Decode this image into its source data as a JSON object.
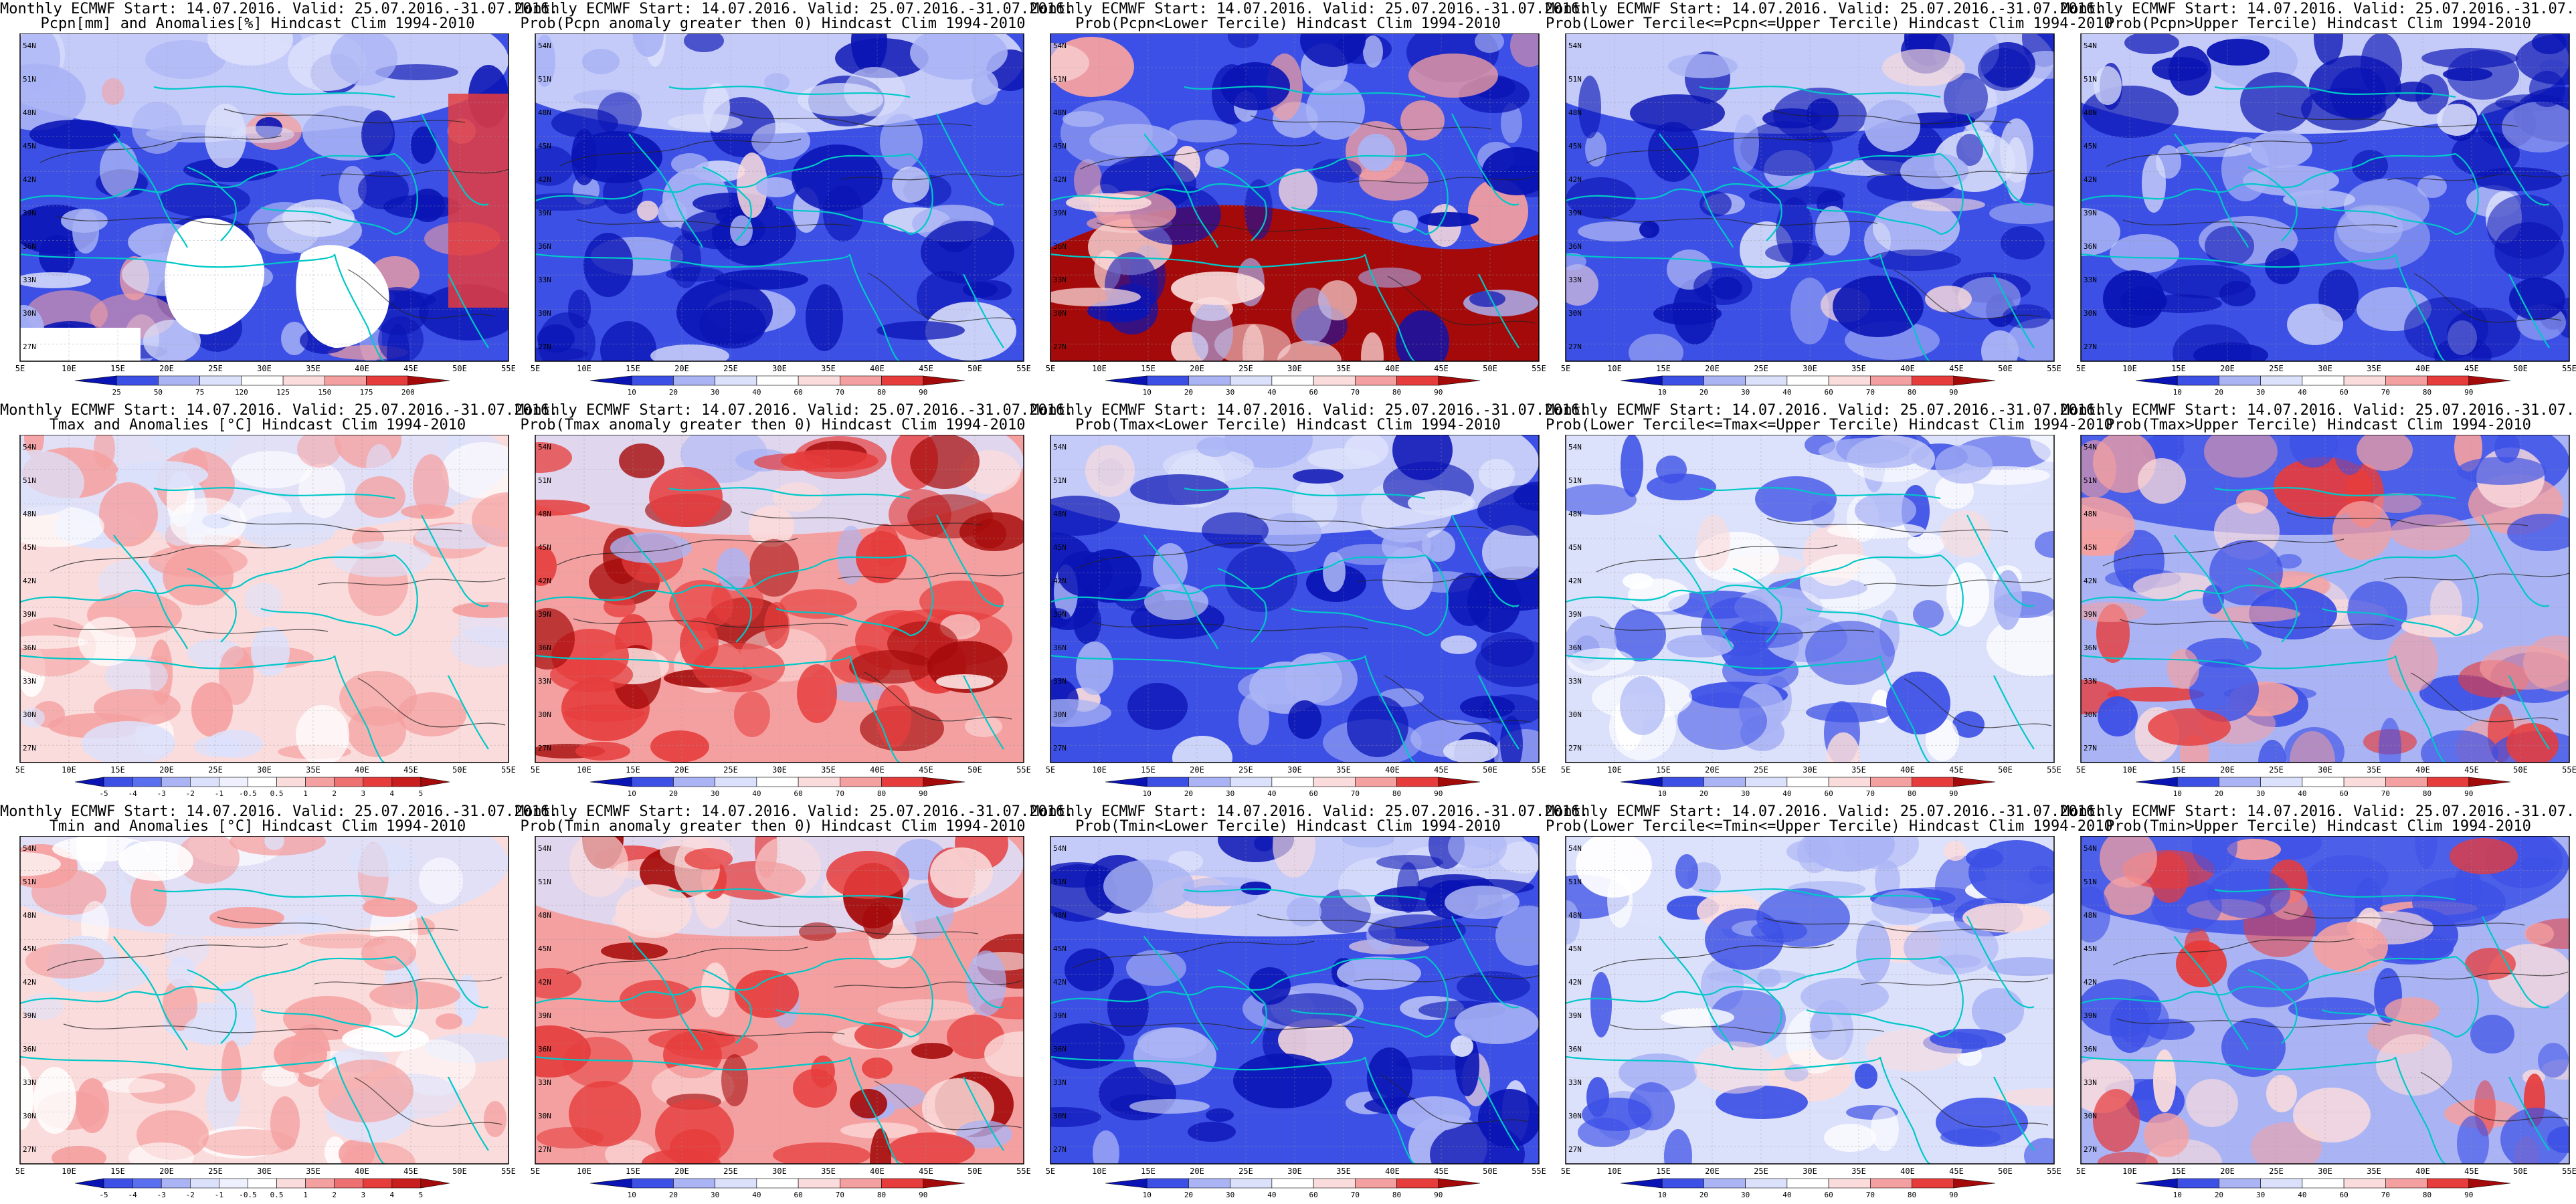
{
  "header_line": "Monthly ECMWF Start: 14.07.2016. Valid: 25.07.2016.-31.07.2016.",
  "colors": {
    "land": "#ffffff",
    "coast": "#00c8c8",
    "contour": "#222222",
    "deep_blue": "#0a14b4",
    "mid_blue": "#3c50e6",
    "light_blue": "#aab4f5",
    "pale_blue": "#dce1fb",
    "pale_red": "#fbdcdc",
    "light_red": "#f5a0a0",
    "mid_red": "#e63c3c",
    "deep_red": "#a50a0a"
  },
  "axis": {
    "lat_ticks": [
      "54N",
      "51N",
      "48N",
      "45N",
      "42N",
      "39N",
      "36N",
      "33N",
      "30N",
      "27N"
    ],
    "lon_ticks": [
      "5E",
      "10E",
      "15E",
      "20E",
      "25E",
      "30E",
      "35E",
      "40E",
      "45E",
      "50E",
      "55E"
    ]
  },
  "colorbars": {
    "precip": [
      "25",
      "50",
      "75",
      "120",
      "125",
      "150",
      "175",
      "200"
    ],
    "prob": [
      "10",
      "20",
      "30",
      "40",
      "60",
      "70",
      "80",
      "90"
    ],
    "temp": [
      "-5",
      "-4",
      "-3",
      "-2",
      "-1",
      "-0.5",
      "0.5",
      "1",
      "2",
      "3",
      "4",
      "5"
    ]
  },
  "panels": [
    {
      "id": "pcpn-anom",
      "row": 0,
      "col": 0,
      "subtitle": "Pcpn[mm] and Anomalies[%] Hindcast Clim 1994-2010",
      "scale": "precip",
      "theme": "precip"
    },
    {
      "id": "pcpn-prob-gt0",
      "row": 0,
      "col": 1,
      "subtitle": "Prob(Pcpn anomaly greater then 0) Hindcast Clim 1994-2010",
      "scale": "prob",
      "theme": "blue"
    },
    {
      "id": "pcpn-lower",
      "row": 0,
      "col": 2,
      "subtitle": "Prob(Pcpn<Lower Tercile) Hindcast Clim 1994-2010",
      "scale": "prob",
      "theme": "redsouth"
    },
    {
      "id": "pcpn-middle",
      "row": 0,
      "col": 3,
      "subtitle": "Prob(Lower Tercile<=Pcpn<=Upper Tercile) Hindcast Clim 1994-2010",
      "scale": "prob",
      "theme": "blue"
    },
    {
      "id": "pcpn-upper",
      "row": 0,
      "col": 4,
      "subtitle": "Prob(Pcpn>Upper Tercile) Hindcast Clim 1994-2010",
      "scale": "prob",
      "theme": "blue"
    },
    {
      "id": "tmax-anom",
      "row": 1,
      "col": 0,
      "subtitle": "Tmax and Anomalies [°C] Hindcast Clim 1994-2010",
      "scale": "temp",
      "theme": "palered"
    },
    {
      "id": "tmax-prob-gt0",
      "row": 1,
      "col": 1,
      "subtitle": "Prob(Tmax anomaly greater then 0) Hindcast Clim 1994-2010",
      "scale": "prob",
      "theme": "red"
    },
    {
      "id": "tmax-lower",
      "row": 1,
      "col": 2,
      "subtitle": "Prob(Tmax<Lower Tercile) Hindcast Clim 1994-2010",
      "scale": "prob",
      "theme": "blue"
    },
    {
      "id": "tmax-middle",
      "row": 1,
      "col": 3,
      "subtitle": "Prob(Lower Tercile<=Tmax<=Upper Tercile) Hindcast Clim 1994-2010",
      "scale": "prob",
      "theme": "mixed"
    },
    {
      "id": "tmax-upper",
      "row": 1,
      "col": 4,
      "subtitle": "Prob(Tmax>Upper Tercile) Hindcast Clim 1994-2010",
      "scale": "prob",
      "theme": "mixedred"
    },
    {
      "id": "tmin-anom",
      "row": 2,
      "col": 0,
      "subtitle": "Tmin and Anomalies [°C] Hindcast Clim 1994-2010",
      "scale": "temp",
      "theme": "palered"
    },
    {
      "id": "tmin-prob-gt0",
      "row": 2,
      "col": 1,
      "subtitle": "Prob(Tmin anomaly greater then 0) Hindcast Clim 1994-2010",
      "scale": "prob",
      "theme": "red"
    },
    {
      "id": "tmin-lower",
      "row": 2,
      "col": 2,
      "subtitle": "Prob(Tmin<Lower Tercile) Hindcast Clim 1994-2010",
      "scale": "prob",
      "theme": "blue"
    },
    {
      "id": "tmin-middle",
      "row": 2,
      "col": 3,
      "subtitle": "Prob(Lower Tercile<=Tmin<=Upper Tercile) Hindcast Clim 1994-2010",
      "scale": "prob",
      "theme": "mixed"
    },
    {
      "id": "tmin-upper",
      "row": 2,
      "col": 4,
      "subtitle": "Prob(Tmin>Upper Tercile) Hindcast Clim 1994-2010",
      "scale": "prob",
      "theme": "mixedred"
    }
  ]
}
